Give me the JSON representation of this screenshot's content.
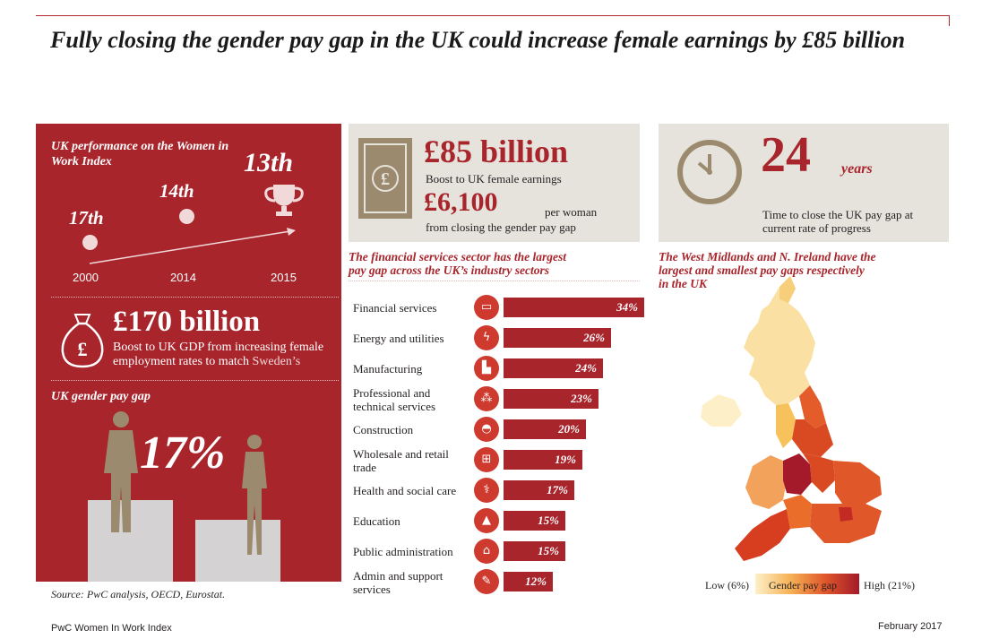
{
  "title": "Fully closing the gender pay gap in the UK could increase female earnings by £85 billion",
  "panel": {
    "index_title": "UK performance on the Women in Work Index",
    "ranks": [
      {
        "rank": "17th",
        "year": "2000"
      },
      {
        "rank": "14th",
        "year": "2014"
      },
      {
        "rank": "13th",
        "year": "2015"
      }
    ],
    "gdp_value": "£170 billion",
    "gdp_desc_1": "Boost to UK GDP from increasing female",
    "gdp_desc_2": "employment rates to match",
    "gdp_desc_highlight": "Sweden’s",
    "pay_gap_title": "UK gender pay gap",
    "pay_gap_value": "17%"
  },
  "earnings": {
    "value": "£85 billion",
    "value_desc": "Boost to UK female earnings",
    "per_woman": "£6,100",
    "per_woman_unit": "per woman",
    "per_woman_desc": "from closing the gender pay gap"
  },
  "time": {
    "value": "24",
    "unit": "years",
    "desc_1": "Time to close the UK pay gap at",
    "desc_2": "current rate of progress"
  },
  "sectors": {
    "title_1": "The financial services sector has the largest",
    "title_2": "pay gap across the UK’s industry sectors",
    "items": [
      {
        "label": "Financial services",
        "value_text": "34%",
        "value": 34,
        "icon": "bank-card-icon",
        "glyph": "▭"
      },
      {
        "label": "Energy and utilities",
        "value_text": "26%",
        "value": 26,
        "icon": "power-pylon-icon",
        "glyph": "ϟ"
      },
      {
        "label": "Manufacturing",
        "value_text": "24%",
        "value": 24,
        "icon": "factory-icon",
        "glyph": "▙"
      },
      {
        "label": "Professional and technical services",
        "value_text": "23%",
        "value": 23,
        "icon": "network-icon",
        "glyph": "⁂"
      },
      {
        "label": "Construction",
        "value_text": "20%",
        "value": 20,
        "icon": "hard-hat-icon",
        "glyph": "◓"
      },
      {
        "label": "Wholesale and retail trade",
        "value_text": "19%",
        "value": 19,
        "icon": "shopping-cart-icon",
        "glyph": "⊞"
      },
      {
        "label": "Health and social care",
        "value_text": "17%",
        "value": 17,
        "icon": "caduceus-icon",
        "glyph": "⚕"
      },
      {
        "label": "Education",
        "value_text": "15%",
        "value": 15,
        "icon": "graduation-cap-icon",
        "glyph": "▲"
      },
      {
        "label": "Public administration",
        "value_text": "15%",
        "value": 15,
        "icon": "government-building-icon",
        "glyph": "⌂"
      },
      {
        "label": "Admin and support services",
        "value_text": "12%",
        "value": 12,
        "icon": "document-icon",
        "glyph": "✎"
      }
    ]
  },
  "map": {
    "title_1": "The West Midlands and N. Ireland have the",
    "title_2": "largest and smallest pay gaps respectively",
    "title_3": "in the UK",
    "legend_low": "Low (6%)",
    "legend_mid": "Gender pay gap",
    "legend_high": "High (21%)"
  },
  "colors": {
    "brand_red": "#a8252c",
    "icon_red": "#cf3a2f",
    "grey_box": "#e6e2dc",
    "figure_tan": "#9b8a6e"
  },
  "footer": {
    "source": "Source: PwC analysis, OECD, Eurostat.",
    "left": "PwC Women In Work Index",
    "right": "February 2017"
  }
}
